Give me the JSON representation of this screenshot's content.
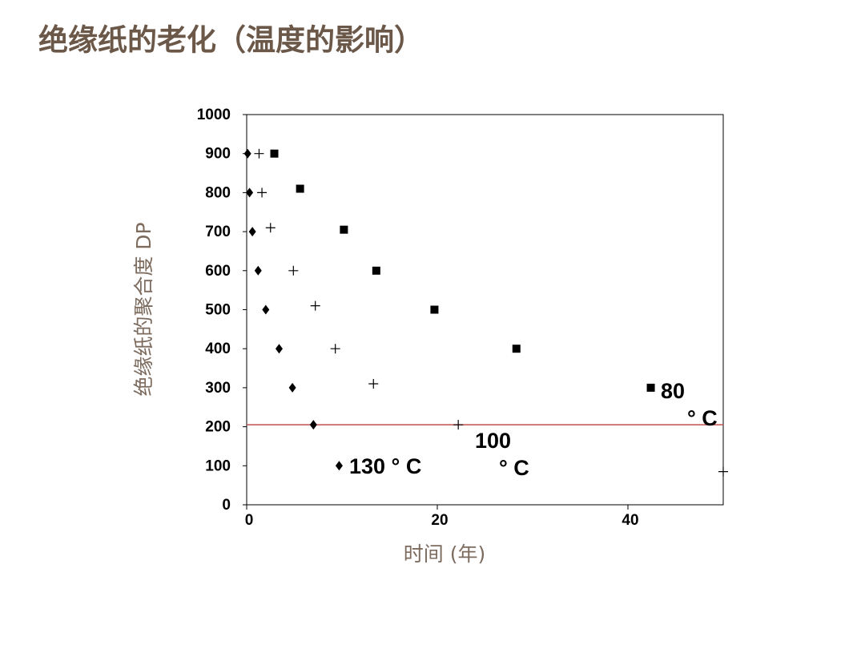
{
  "chart_data": {
    "type": "scatter",
    "title": "绝缘纸的老化（温度的影响）",
    "x_label": "时间 (年)",
    "y_label": "绝缘纸的聚合度 DP",
    "xlim": [
      0,
      50
    ],
    "xticks": [
      0,
      20,
      40
    ],
    "ylim": [
      0,
      1000
    ],
    "yticks": [
      0,
      100,
      200,
      300,
      400,
      500,
      600,
      700,
      800,
      900,
      1000
    ],
    "hline": {
      "value": 205,
      "color": "#c0504d"
    },
    "series": [
      {
        "marker": "diamond",
        "color": "#000000",
        "x": [
          0.1,
          0.3,
          0.6,
          1.2,
          2.0,
          3.4,
          4.8,
          7.0,
          9.7
        ],
        "values": [
          900,
          800,
          700,
          600,
          500,
          400,
          300,
          205,
          100
        ]
      },
      {
        "marker": "plus",
        "color": "#000000",
        "x": [
          1.3,
          1.6,
          2.5,
          4.9,
          7.2,
          9.3,
          13.3,
          22.2,
          50
        ],
        "values": [
          900,
          800,
          710,
          600,
          510,
          400,
          310,
          205,
          85
        ]
      },
      {
        "marker": "square",
        "color": "#000000",
        "x": [
          2.9,
          5.6,
          10.2,
          13.6,
          19.7,
          28.3,
          42.4
        ],
        "values": [
          900,
          810,
          705,
          600,
          500,
          400,
          300
        ]
      }
    ],
    "annotations": [
      {
        "lines": [
          "130 ° C"
        ]
      },
      {
        "lines": [
          "100",
          "° C"
        ]
      },
      {
        "lines": [
          "80",
          "° C"
        ]
      }
    ]
  }
}
